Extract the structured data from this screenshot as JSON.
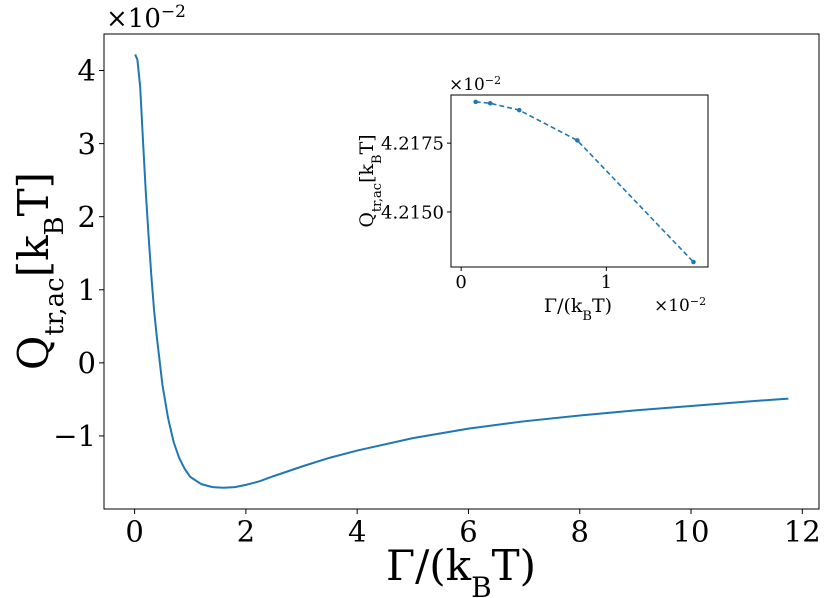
{
  "chart_data": [
    {
      "type": "line",
      "role": "main",
      "xlabel": "Γ/(k_BT)",
      "ylabel": "Q_tr,ac[k_BT]",
      "y_scale_label": "×10−2",
      "xlim": [
        -0.55,
        12.3
      ],
      "ylim": [
        -2.0,
        4.5
      ],
      "xticks": [
        0,
        2,
        4,
        6,
        8,
        10,
        12
      ],
      "yticks": [
        -1,
        0,
        1,
        2,
        3,
        4
      ],
      "color": "#1f77b4",
      "series": [
        {
          "x": [
            0.01,
            0.05,
            0.1,
            0.15,
            0.2,
            0.25,
            0.3,
            0.35,
            0.4,
            0.5,
            0.6,
            0.7,
            0.8,
            0.9,
            1.0,
            1.2,
            1.4,
            1.6,
            1.8,
            2.0,
            2.25,
            2.5,
            3.0,
            3.5,
            4.0,
            5.0,
            6.0,
            7.0,
            8.0,
            9.0,
            10.0,
            11.0,
            11.75
          ],
          "y": [
            4.22,
            4.15,
            3.78,
            3.05,
            2.35,
            1.75,
            1.2,
            0.72,
            0.35,
            -0.3,
            -0.75,
            -1.08,
            -1.3,
            -1.45,
            -1.56,
            -1.66,
            -1.7,
            -1.71,
            -1.7,
            -1.67,
            -1.62,
            -1.55,
            -1.42,
            -1.3,
            -1.2,
            -1.03,
            -0.9,
            -0.8,
            -0.72,
            -0.65,
            -0.59,
            -0.53,
            -0.49
          ]
        }
      ]
    },
    {
      "type": "line",
      "role": "inset",
      "xlabel": "Γ/(k_BT)",
      "ylabel": "Q_tr,ac[k_BT]",
      "x_scale_label": "×10−2",
      "y_scale_label": "×10−2",
      "xlim": [
        -0.07,
        1.7
      ],
      "ylim": [
        4.213,
        4.21925
      ],
      "xticks": [
        0,
        1
      ],
      "yticks": [
        4.215,
        4.2175
      ],
      "ytick_labels": [
        "4.2150",
        "4.2175"
      ],
      "style": "dashed with markers",
      "color": "#1f77b4",
      "series": [
        {
          "x": [
            0.1,
            0.2,
            0.4,
            0.8,
            1.6
          ],
          "y": [
            4.219,
            4.21895,
            4.2187,
            4.2176,
            4.21318
          ]
        }
      ]
    }
  ]
}
